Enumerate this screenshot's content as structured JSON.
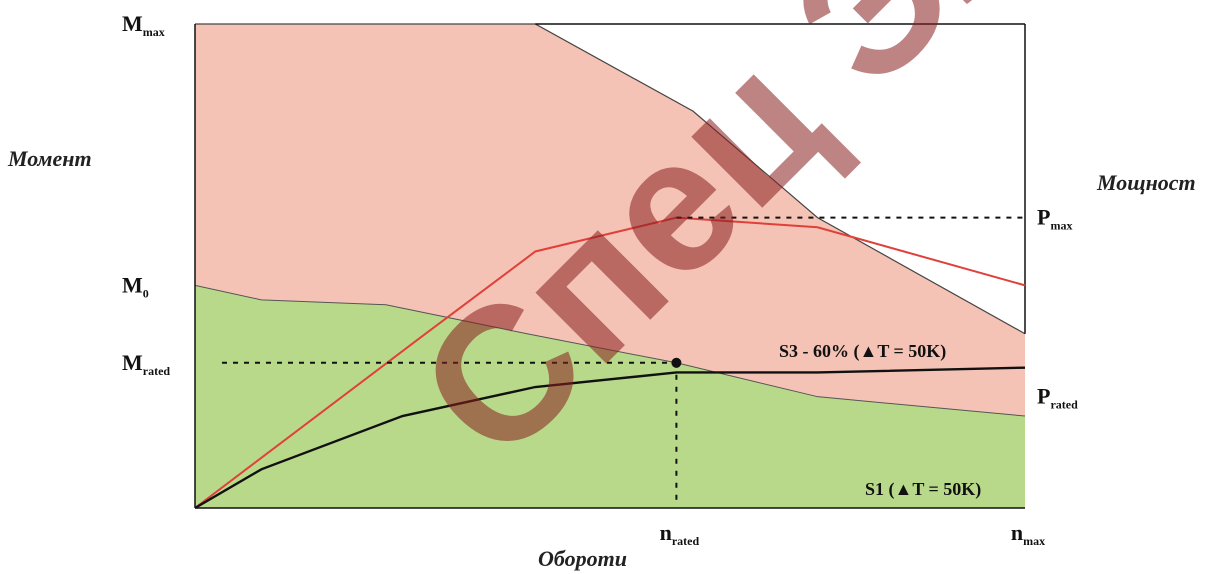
{
  "colors": {
    "s3_region": "#f4c3b5",
    "s1_region": "#b9d98a",
    "power_s3": "#e0403a",
    "power_s1": "#111111",
    "frame": "#111111",
    "watermark": "#8a1f1f"
  },
  "chart_data": {
    "type": "area",
    "xlim": [
      0,
      100
    ],
    "ylim": [
      0,
      100
    ],
    "x_axis": {
      "title": "Обороти",
      "ticks": [
        {
          "label": "n",
          "sub": "rated",
          "x": 58
        },
        {
          "label": "n",
          "sub": "max",
          "x": 100
        }
      ]
    },
    "y_left": {
      "title": "Момент",
      "ticks": [
        {
          "label": "M",
          "sub": "max",
          "y": 100
        },
        {
          "label": "M",
          "sub": "0",
          "y": 46
        },
        {
          "label": "M",
          "sub": "rated",
          "y": 30
        }
      ]
    },
    "y_right": {
      "title": "Мощност",
      "ticks": [
        {
          "label": "P",
          "sub": "max",
          "y": 60
        },
        {
          "label": "P",
          "sub": "rated",
          "y": 23
        }
      ]
    },
    "series": [
      {
        "name": "S3 - 60% (▲T = 50K)",
        "kind": "torque-area",
        "x": [
          0,
          41,
          60,
          75,
          100
        ],
        "y": [
          100,
          100,
          82,
          60,
          36
        ]
      },
      {
        "name": "S1 (▲T = 50K)",
        "kind": "torque-area",
        "x": [
          0,
          8,
          23,
          40,
          58,
          75,
          100
        ],
        "y": [
          46,
          43,
          42,
          36,
          30,
          23,
          19
        ]
      },
      {
        "kind": "power-line",
        "x": [
          0,
          27,
          41,
          58,
          75,
          100
        ],
        "y": [
          0,
          35,
          53,
          60,
          58,
          46
        ]
      },
      {
        "kind": "power-line",
        "x": [
          0,
          8,
          25,
          41,
          58,
          75,
          100
        ],
        "y": [
          0,
          8,
          19,
          25,
          28,
          28,
          29
        ]
      }
    ],
    "rated_point": {
      "x": 58,
      "y": 30
    },
    "annotations": [
      "S3 - 60% (▲T = 50K)",
      "S1 (▲T = 50K)"
    ]
  },
  "watermark": "Спец Эл"
}
